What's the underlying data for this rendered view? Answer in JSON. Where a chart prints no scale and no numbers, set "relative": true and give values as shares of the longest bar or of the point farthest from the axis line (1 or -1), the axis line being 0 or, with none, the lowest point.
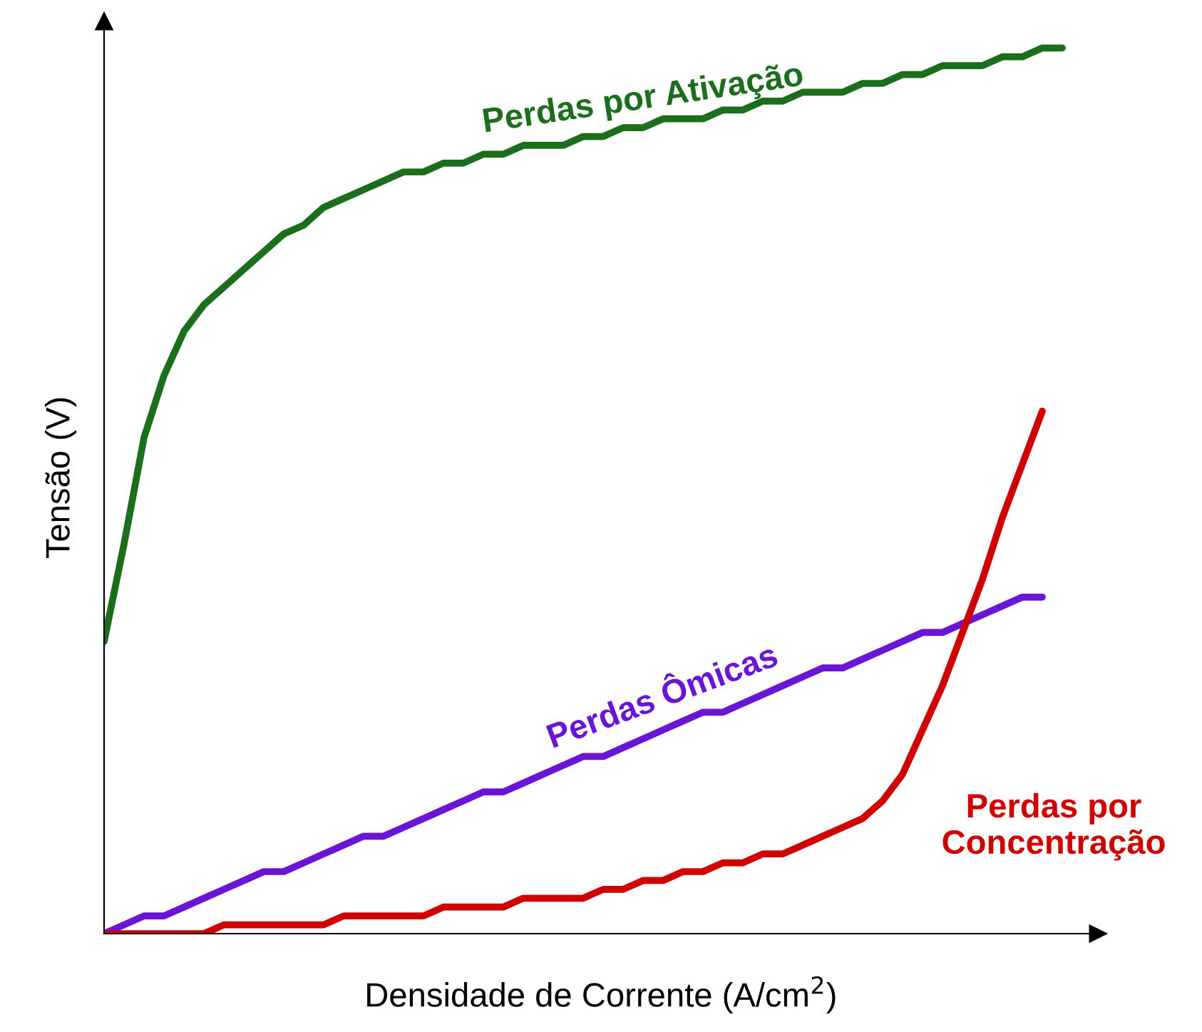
{
  "chart_data": {
    "type": "line",
    "relative": true,
    "xlabel": "Densidade de Corrente (A/cm$^{2}$)",
    "ylabel": "Tensão (V)",
    "categories": [
      null,
      null,
      null,
      null,
      null,
      null,
      null,
      null,
      null,
      null,
      null,
      null,
      null,
      null,
      null,
      null,
      null,
      null,
      null,
      null,
      null,
      null,
      null,
      null,
      null,
      null,
      null,
      null,
      null,
      null,
      null,
      null,
      null,
      null,
      null,
      null,
      null,
      null,
      null,
      null,
      null,
      null,
      null,
      null,
      null,
      null,
      null,
      null,
      null
    ],
    "series": [
      {
        "name": "Perdas por Ativação",
        "color": "#1b6e1b",
        "values": [
          0.33,
          0.44,
          0.56,
          0.63,
          0.68,
          0.71,
          0.73,
          0.75,
          0.77,
          0.79,
          0.8,
          0.82,
          0.83,
          0.84,
          0.85,
          0.86,
          0.86,
          0.87,
          0.87,
          0.88,
          0.88,
          0.89,
          0.89,
          0.89,
          0.9,
          0.9,
          0.91,
          0.91,
          0.92,
          0.92,
          0.92,
          0.93,
          0.93,
          0.94,
          0.94,
          0.95,
          0.95,
          0.95,
          0.96,
          0.96,
          0.97,
          0.97,
          0.98,
          0.98,
          0.98,
          0.99,
          0.99,
          1.0,
          1.0
        ]
      },
      {
        "name": "Perdas Ômicas",
        "color": "#6a14d8",
        "values": [
          0,
          0.01,
          0.02,
          0.02,
          0.03,
          0.04,
          0.05,
          0.06,
          0.07,
          0.07,
          0.08,
          0.09,
          0.1,
          0.11,
          0.11,
          0.12,
          0.13,
          0.14,
          0.15,
          0.16,
          0.16,
          0.17,
          0.18,
          0.19,
          0.2,
          0.2,
          0.21,
          0.22,
          0.23,
          0.24,
          0.25,
          0.25,
          0.26,
          0.27,
          0.28,
          0.29,
          0.3,
          0.3,
          0.31,
          0.32,
          0.33,
          0.34,
          0.34,
          0.35,
          0.36,
          0.37,
          0.38,
          0.38,
          null
        ]
      },
      {
        "name": "Perdas por Concentração",
        "color": "#d10000",
        "values": [
          0,
          0,
          0,
          0,
          0,
          0,
          0.01,
          0.01,
          0.01,
          0.01,
          0.01,
          0.01,
          0.02,
          0.02,
          0.02,
          0.02,
          0.02,
          0.03,
          0.03,
          0.03,
          0.03,
          0.04,
          0.04,
          0.04,
          0.04,
          0.05,
          0.05,
          0.06,
          0.06,
          0.07,
          0.07,
          0.08,
          0.08,
          0.09,
          0.09,
          0.1,
          0.11,
          0.12,
          0.13,
          0.15,
          0.18,
          0.23,
          0.28,
          0.34,
          0.4,
          0.47,
          0.53,
          0.59,
          null
        ]
      }
    ]
  }
}
